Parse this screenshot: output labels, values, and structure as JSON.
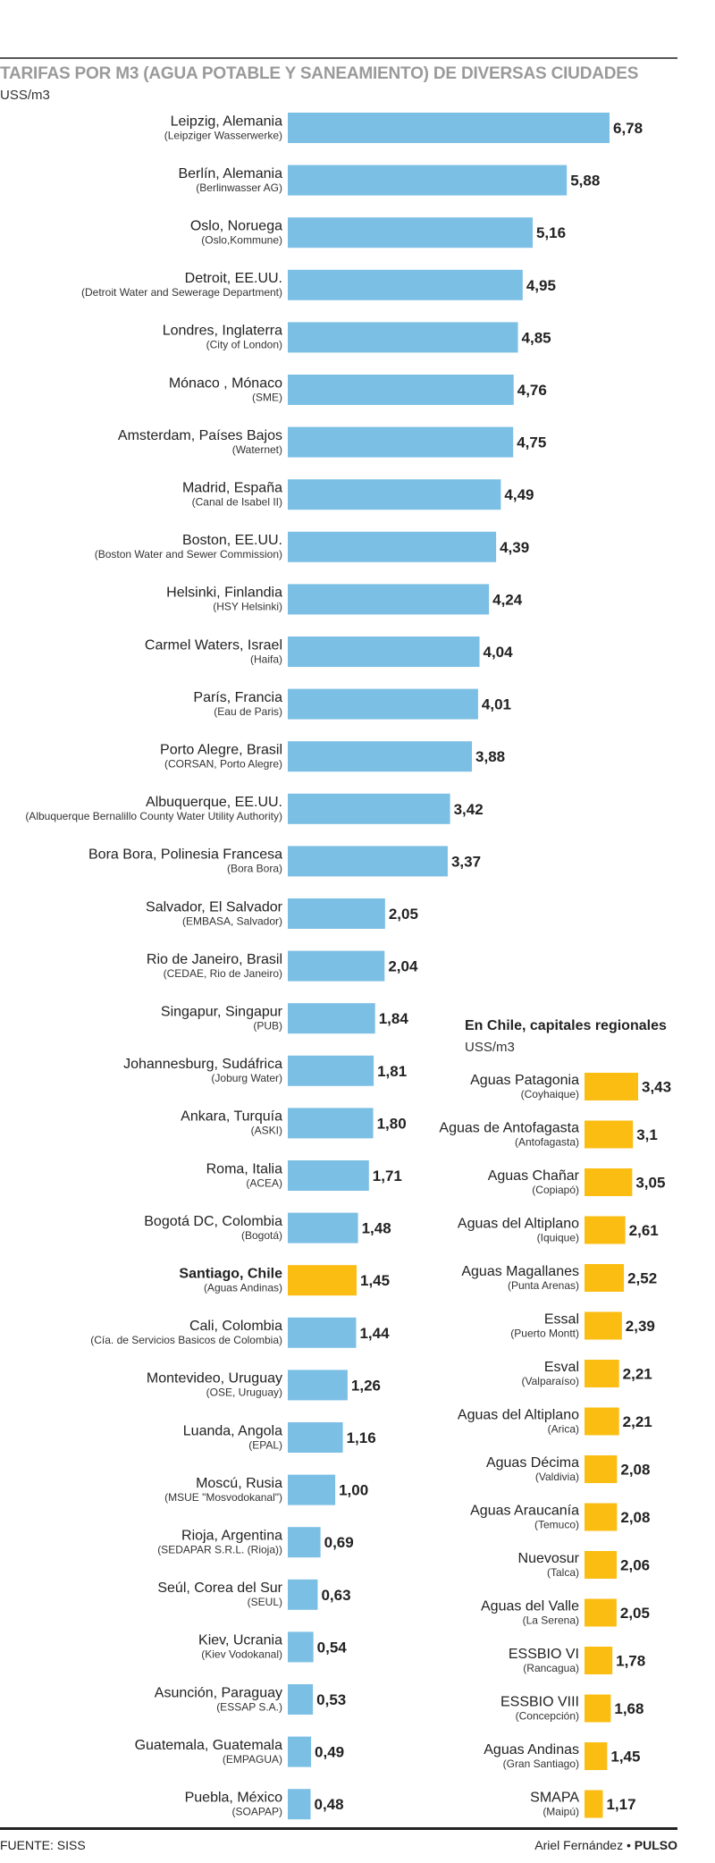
{
  "title": "TARIFAS POR M3 (AGUA POTABLE Y SANEAMIENTO) DE DIVERSAS CIUDADES",
  "unit": "USS/m3",
  "colors": {
    "world_bar": "#7cbfe4",
    "chile_bar": "#fbbd12"
  },
  "chart_data": [
    {
      "type": "bar",
      "orientation": "horizontal",
      "title": "TARIFAS POR M3 (AGUA POTABLE Y SANEAMIENTO) DE DIVERSAS CIUDADES",
      "ylabel": "USS/m3",
      "highlight": "Santiago, Chile",
      "categories": [
        {
          "name": "Leipzig, Alemania",
          "sub": "(Leipziger Wasserwerke)",
          "value": 6.78,
          "label": "6,78"
        },
        {
          "name": "Berlín, Alemania",
          "sub": "(Berlinwasser AG)",
          "value": 5.88,
          "label": "5,88"
        },
        {
          "name": "Oslo, Noruega",
          "sub": "(Oslo,Kommune)",
          "value": 5.16,
          "label": "5,16"
        },
        {
          "name": "Detroit, EE.UU.",
          "sub": "(Detroit Water and Sewerage Department)",
          "value": 4.95,
          "label": "4,95"
        },
        {
          "name": "Londres, Inglaterra",
          "sub": "(City of London)",
          "value": 4.85,
          "label": "4,85"
        },
        {
          "name": "Mónaco , Mónaco",
          "sub": "(SME)",
          "value": 4.76,
          "label": "4,76"
        },
        {
          "name": "Amsterdam, Países Bajos",
          "sub": "(Waternet)",
          "value": 4.75,
          "label": "4,75"
        },
        {
          "name": "Madrid, España",
          "sub": "(Canal de Isabel II)",
          "value": 4.49,
          "label": "4,49"
        },
        {
          "name": "Boston, EE.UU.",
          "sub": "(Boston Water and Sewer Commission)",
          "value": 4.39,
          "label": "4,39"
        },
        {
          "name": "Helsinki, Finlandia",
          "sub": "(HSY Helsinki)",
          "value": 4.24,
          "label": "4,24"
        },
        {
          "name": "Carmel Waters, Israel",
          "sub": "(Haifa)",
          "value": 4.04,
          "label": "4,04"
        },
        {
          "name": "París, Francia",
          "sub": "(Eau de Paris)",
          "value": 4.01,
          "label": "4,01"
        },
        {
          "name": "Porto Alegre, Brasil",
          "sub": "(CORSAN, Porto Alegre)",
          "value": 3.88,
          "label": "3,88"
        },
        {
          "name": "Albuquerque, EE.UU.",
          "sub": "(Albuquerque Bernalillo County Water Utility Authority)",
          "value": 3.42,
          "label": "3,42"
        },
        {
          "name": "Bora Bora, Polinesia Francesa",
          "sub": "(Bora Bora)",
          "value": 3.37,
          "label": "3,37"
        },
        {
          "name": "Salvador, El Salvador",
          "sub": "(EMBASA, Salvador)",
          "value": 2.05,
          "label": "2,05"
        },
        {
          "name": "Rio de Janeiro, Brasil",
          "sub": "(CEDAE, Rio de Janeiro)",
          "value": 2.04,
          "label": "2,04"
        },
        {
          "name": "Singapur, Singapur",
          "sub": "(PUB)",
          "value": 1.84,
          "label": "1,84"
        },
        {
          "name": "Johannesburg, Sudáfrica",
          "sub": "(Joburg Water)",
          "value": 1.81,
          "label": "1,81"
        },
        {
          "name": "Ankara, Turquía",
          "sub": "(ASKI)",
          "value": 1.8,
          "label": "1,80"
        },
        {
          "name": "Roma, Italia",
          "sub": "(ACEA)",
          "value": 1.71,
          "label": "1,71"
        },
        {
          "name": "Bogotá DC, Colombia",
          "sub": "(Bogotá)",
          "value": 1.48,
          "label": "1,48"
        },
        {
          "name": "Santiago, Chile",
          "sub": "(Aguas Andinas)",
          "value": 1.45,
          "label": "1,45"
        },
        {
          "name": "Cali, Colombia",
          "sub": "(Cía. de Servicios Basicos de Colombia)",
          "value": 1.44,
          "label": "1,44"
        },
        {
          "name": "Montevideo, Uruguay",
          "sub": "(OSE, Uruguay)",
          "value": 1.26,
          "label": "1,26"
        },
        {
          "name": "Luanda, Angola",
          "sub": "(EPAL)",
          "value": 1.16,
          "label": "1,16"
        },
        {
          "name": "Moscú, Rusia",
          "sub": "(MSUE \"Mosvodokanal\")",
          "value": 1.0,
          "label": "1,00"
        },
        {
          "name": "Rioja, Argentina",
          "sub": "(SEDAPAR S.R.L. (Rioja))",
          "value": 0.69,
          "label": "0,69"
        },
        {
          "name": "Seúl, Corea del Sur",
          "sub": "(SEUL)",
          "value": 0.63,
          "label": "0,63"
        },
        {
          "name": "Kiev, Ucrania",
          "sub": "(Kiev Vodokanal)",
          "value": 0.54,
          "label": "0,54"
        },
        {
          "name": "Asunción, Paraguay",
          "sub": "(ESSAP S.A.)",
          "value": 0.53,
          "label": "0,53"
        },
        {
          "name": "Guatemala, Guatemala",
          "sub": "(EMPAGUA)",
          "value": 0.49,
          "label": "0,49"
        },
        {
          "name": "Puebla, México",
          "sub": "(SOAPAP)",
          "value": 0.48,
          "label": "0,48"
        }
      ]
    },
    {
      "type": "bar",
      "orientation": "horizontal",
      "title": "En Chile, capitales regionales",
      "ylabel": "USS/m3",
      "categories": [
        {
          "name": "Aguas Patagonia",
          "sub": "(Coyhaique)",
          "value": 3.43,
          "label": "3,43"
        },
        {
          "name": "Aguas de Antofagasta",
          "sub": "(Antofagasta)",
          "value": 3.1,
          "label": "3,1"
        },
        {
          "name": "Aguas Chañar",
          "sub": "(Copiapó)",
          "value": 3.05,
          "label": "3,05"
        },
        {
          "name": "Aguas del Altiplano",
          "sub": "(Iquique)",
          "value": 2.61,
          "label": "2,61"
        },
        {
          "name": "Aguas Magallanes",
          "sub": "(Punta Arenas)",
          "value": 2.52,
          "label": "2,52"
        },
        {
          "name": "Essal",
          "sub": "(Puerto Montt)",
          "value": 2.39,
          "label": "2,39"
        },
        {
          "name": "Esval",
          "sub": "(Valparaíso)",
          "value": 2.21,
          "label": "2,21"
        },
        {
          "name": "Aguas del Altiplano",
          "sub": "(Arica)",
          "value": 2.21,
          "label": "2,21"
        },
        {
          "name": "Aguas Décima",
          "sub": "(Valdivia)",
          "value": 2.08,
          "label": "2,08"
        },
        {
          "name": "Aguas Araucanía",
          "sub": "(Temuco)",
          "value": 2.08,
          "label": "2,08"
        },
        {
          "name": "Nuevosur",
          "sub": "(Talca)",
          "value": 2.06,
          "label": "2,06"
        },
        {
          "name": "Aguas del Valle",
          "sub": "(La Serena)",
          "value": 2.05,
          "label": "2,05"
        },
        {
          "name": "ESSBIO VI",
          "sub": "(Rancagua)",
          "value": 1.78,
          "label": "1,78"
        },
        {
          "name": "ESSBIO VIII",
          "sub": "(Concepción)",
          "value": 1.68,
          "label": "1,68"
        },
        {
          "name": "Aguas Andinas",
          "sub": "(Gran Santiago)",
          "value": 1.45,
          "label": "1,45"
        },
        {
          "name": "SMAPA",
          "sub": "(Maipú)",
          "value": 1.17,
          "label": "1,17"
        }
      ]
    }
  ],
  "chile": {
    "title": "En Chile, capitales regionales",
    "unit": "USS/m3"
  },
  "footer": {
    "source": "FUENTE: SISS",
    "credit_name": "Ariel Fernández •",
    "credit_brand": "PULSO"
  }
}
